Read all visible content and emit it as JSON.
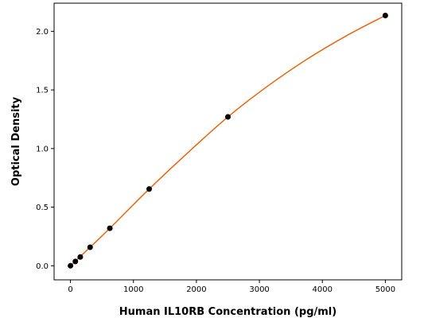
{
  "chart_data": {
    "type": "scatter",
    "title": "",
    "xlabel": "Human IL10RB Concentration (pg/ml)",
    "ylabel": "Optical Density",
    "xlim": [
      -260,
      5260
    ],
    "ylim": [
      -0.12,
      2.24
    ],
    "xticks": [
      0,
      1000,
      2000,
      3000,
      4000,
      5000
    ],
    "xtick_labels": [
      "0",
      "1000",
      "2000",
      "3000",
      "4000",
      "5000"
    ],
    "yticks": [
      0.0,
      0.5,
      1.0,
      1.5,
      2.0
    ],
    "ytick_labels": [
      "0.0",
      "0.5",
      "1.0",
      "1.5",
      "2.0"
    ],
    "grid": false,
    "legend": "none",
    "series": [
      {
        "kind": "points",
        "color": "#000000",
        "x": [
          0,
          78,
          156,
          312,
          625,
          1250,
          2500,
          5000
        ],
        "y": [
          0.0,
          0.037,
          0.075,
          0.158,
          0.32,
          0.655,
          1.27,
          2.135
        ]
      },
      {
        "kind": "fit-curve",
        "color": "#e8650f",
        "x": [
          0,
          312,
          625,
          1250,
          1875,
          2500,
          3125,
          3750,
          4375,
          5000
        ],
        "y": [
          0.0,
          0.158,
          0.32,
          0.655,
          0.97,
          1.27,
          1.53,
          1.76,
          1.96,
          2.135
        ]
      }
    ]
  }
}
